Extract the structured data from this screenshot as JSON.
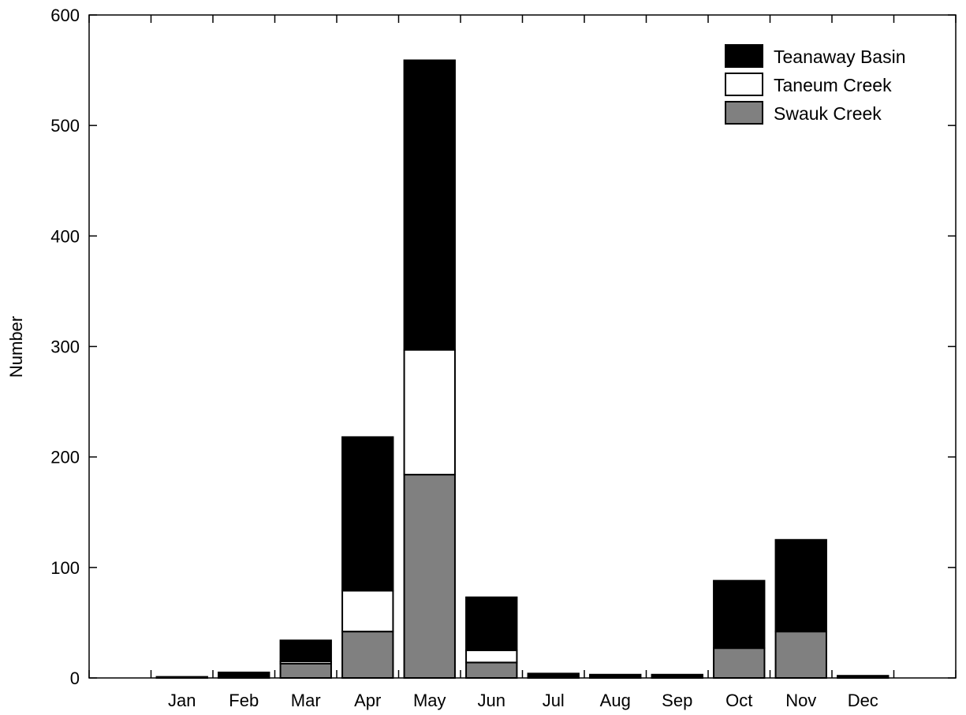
{
  "chart_data": {
    "type": "bar",
    "stacked": true,
    "title": "",
    "xlabel": "",
    "ylabel": "Number",
    "ylim": [
      0,
      600
    ],
    "yticks": [
      0,
      100,
      200,
      300,
      400,
      500,
      600
    ],
    "grid": false,
    "legend_position": "top-right",
    "categories": [
      "Jan",
      "Feb",
      "Mar",
      "Apr",
      "May",
      "Jun",
      "Jul",
      "Aug",
      "Sep",
      "Oct",
      "Nov",
      "Dec"
    ],
    "series": [
      {
        "name": "Swauk Creek",
        "color": "#808080",
        "values": [
          0,
          0,
          13,
          42,
          184,
          14,
          0,
          0,
          0,
          27,
          42,
          0
        ]
      },
      {
        "name": "Taneum Creek",
        "color": "#ffffff",
        "values": [
          0,
          0,
          2,
          37,
          113,
          11,
          0,
          0,
          0,
          0,
          0,
          0
        ]
      },
      {
        "name": "Teanaway Basin",
        "color": "#000000",
        "values": [
          1,
          5,
          19,
          139,
          262,
          48,
          4,
          3,
          3,
          61,
          83,
          2
        ]
      }
    ],
    "legend_order": [
      "Teanaway Basin",
      "Taneum Creek",
      "Swauk Creek"
    ]
  }
}
